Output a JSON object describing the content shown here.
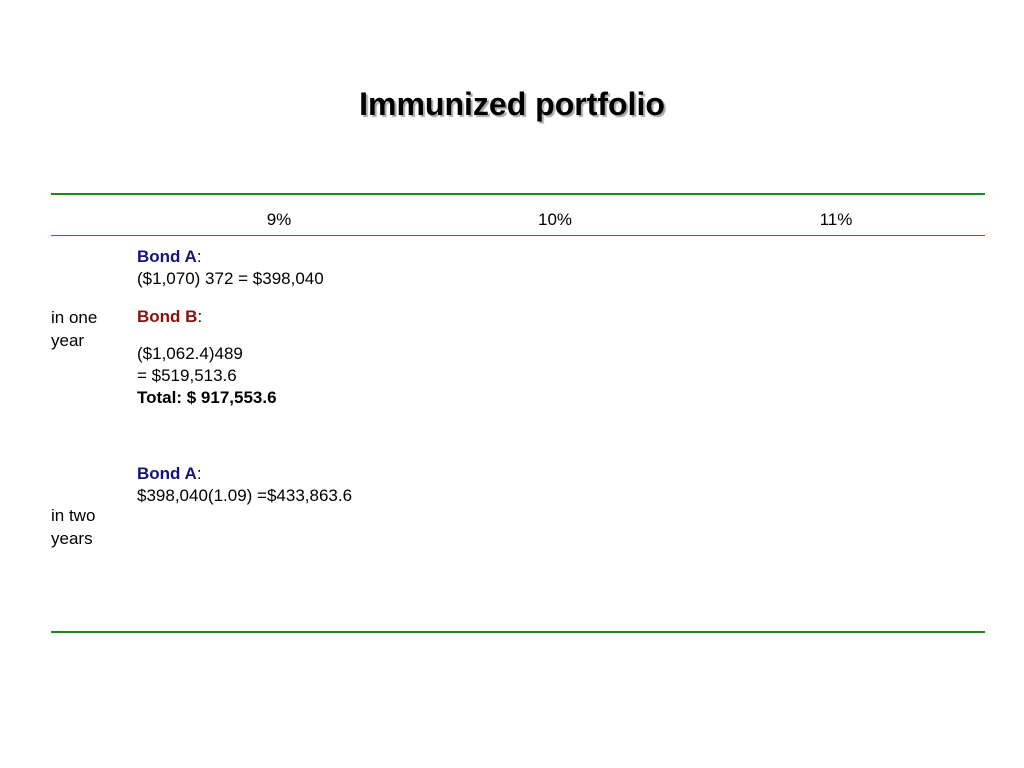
{
  "title": "Immunized portfolio",
  "columns": [
    "9%",
    "10%",
    "11%"
  ],
  "rows": {
    "one_year": {
      "label": [
        "in one",
        "year"
      ],
      "bond_a_label": "Bond A",
      "bond_a_value": "($1,070) 372 = $398,040",
      "bond_b_label": "Bond B",
      "bond_b_value_1": "($1,062.4)489",
      "bond_b_value_2": "= $519,513.6",
      "total": "Total: $ 917,553.6"
    },
    "two_years": {
      "label": [
        "in two",
        "years"
      ],
      "bond_a_label": "Bond A",
      "bond_a_value": "$398,040(1.09) =$433,863.6"
    }
  },
  "colors": {
    "rule": "#178a17",
    "bond_a": "#14147a",
    "bond_b": "#8a1010"
  }
}
